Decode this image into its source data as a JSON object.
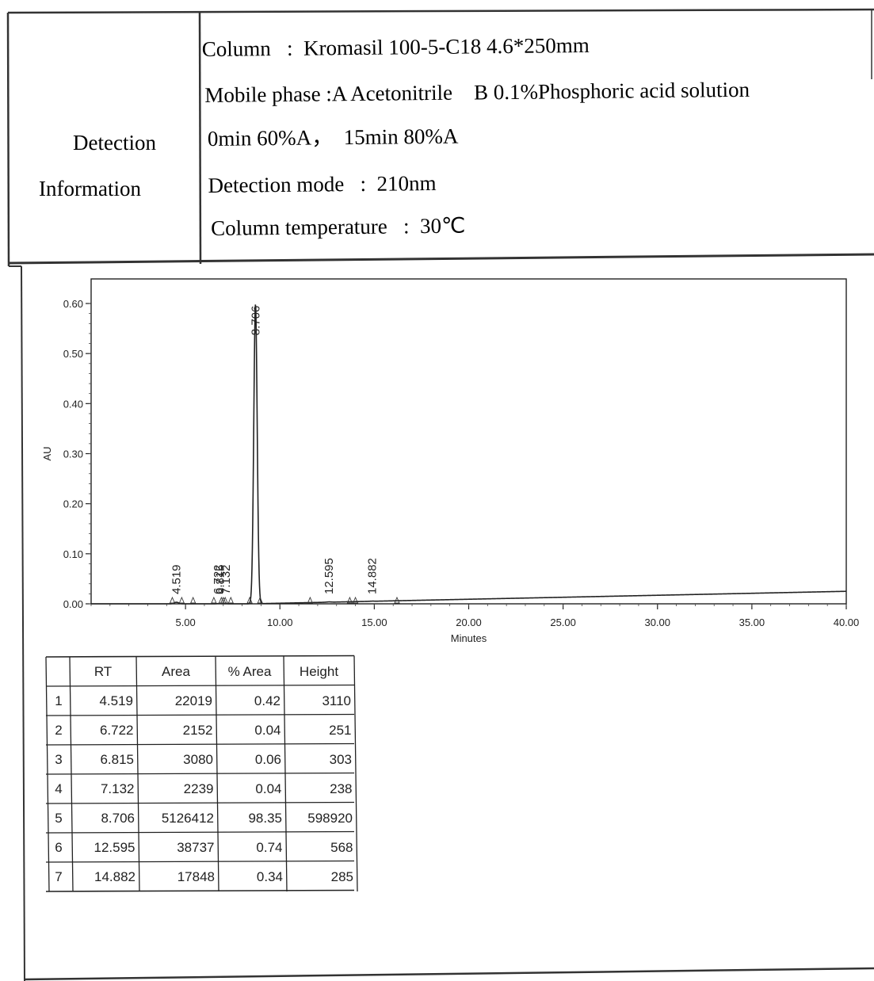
{
  "info": {
    "section_label_line1": "Detection",
    "section_label_line2": "Information",
    "column_line": "Column   :  Kromasil 100-5-C18 4.6*250mm",
    "mobile_phase_line": "Mobile phase :A Acetonitrile    B 0.1%Phosphoric acid solution",
    "gradient_line": "0min 60%A，  15min 80%A",
    "detection_mode_line": "Detection mode   :  210nm",
    "column_temp_line": "Column temperature   :  30℃"
  },
  "chart_data": {
    "type": "line",
    "xlabel": "Minutes",
    "ylabel": "AU",
    "xlim": [
      0,
      40
    ],
    "ylim": [
      0,
      0.6
    ],
    "x_ticks": [
      "5.00",
      "10.00",
      "15.00",
      "20.00",
      "25.00",
      "30.00",
      "35.00",
      "40.00"
    ],
    "x_tick_values": [
      5,
      10,
      15,
      20,
      25,
      30,
      35,
      40
    ],
    "y_ticks": [
      "0.00",
      "0.10",
      "0.20",
      "0.30",
      "0.40",
      "0.50",
      "0.60"
    ],
    "y_tick_values": [
      0,
      0.1,
      0.2,
      0.3,
      0.4,
      0.5,
      0.6
    ],
    "grid": false,
    "peaks": [
      {
        "rt": 4.519,
        "label": "4.519",
        "height": 0.0031
      },
      {
        "rt": 6.722,
        "label": "6.722",
        "height": 0.00025
      },
      {
        "rt": 6.815,
        "label": "6.815",
        "height": 0.0003
      },
      {
        "rt": 7.132,
        "label": "7.132",
        "height": 0.00024
      },
      {
        "rt": 8.706,
        "label": "8.706",
        "height": 0.599
      },
      {
        "rt": 12.595,
        "label": "12.595",
        "height": 0.00057
      },
      {
        "rt": 14.882,
        "label": "14.882",
        "height": 0.00029
      }
    ],
    "baseline_end": 0.025,
    "integration_marks": [
      4.3,
      4.8,
      5.4,
      6.5,
      6.9,
      7.0,
      7.1,
      7.4,
      8.4,
      8.95,
      11.6,
      13.7,
      14.0,
      16.2
    ]
  },
  "table": {
    "headers": [
      "",
      "RT",
      "Area",
      "% Area",
      "Height"
    ],
    "rows": [
      [
        "1",
        "4.519",
        "22019",
        "0.42",
        "3110"
      ],
      [
        "2",
        "6.722",
        "2152",
        "0.04",
        "251"
      ],
      [
        "3",
        "6.815",
        "3080",
        "0.06",
        "303"
      ],
      [
        "4",
        "7.132",
        "2239",
        "0.04",
        "238"
      ],
      [
        "5",
        "8.706",
        "5126412",
        "98.35",
        "598920"
      ],
      [
        "6",
        "12.595",
        "38737",
        "0.74",
        "568"
      ],
      [
        "7",
        "14.882",
        "17848",
        "0.34",
        "285"
      ]
    ]
  }
}
